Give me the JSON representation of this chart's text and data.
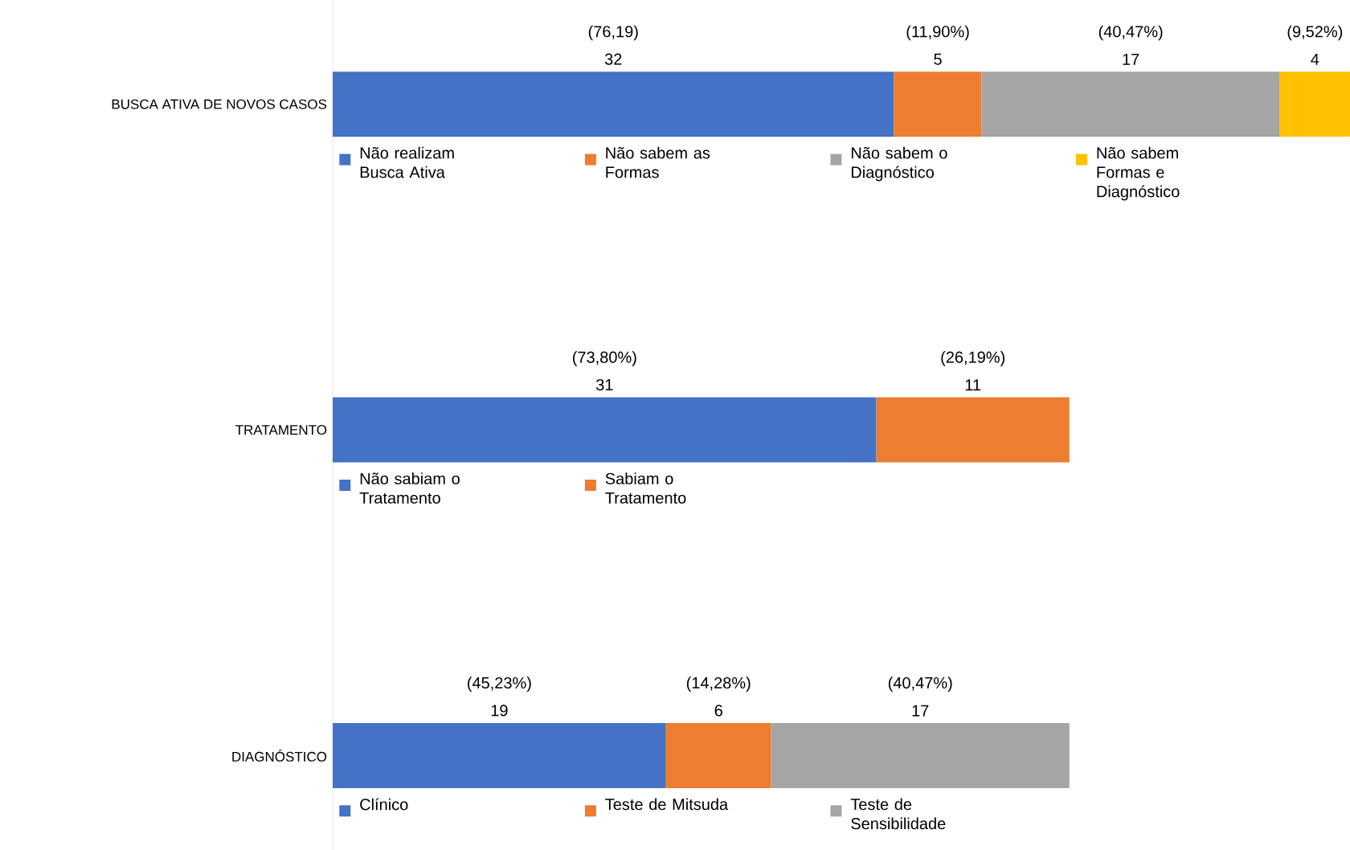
{
  "chart_data": {
    "type": "bar",
    "orientation": "horizontal",
    "stacked": true,
    "data_labels": true,
    "legend": "bottom",
    "tick_labels": "y",
    "categories": [
      "BUSCA ATIVA DE NOVOS CASOS",
      "TRATAMENTO",
      "DIAGNÓSTICO"
    ],
    "series": [
      {
        "name": "Não realizam Busca Ativa",
        "color": "#4472c4",
        "values": [
          32,
          null,
          null
        ]
      },
      {
        "name": "Não sabem as Formas",
        "color": "#ed7d31",
        "values": [
          5,
          null,
          null
        ]
      },
      {
        "name": "Não sabem o Diagnóstico",
        "color": "#a5a5a5",
        "values": [
          17,
          null,
          null
        ]
      },
      {
        "name": "Não sabem Formas e Diagnóstico",
        "color": "#ffc000",
        "values": [
          4,
          null,
          null
        ]
      },
      {
        "name": "Não sabiam o Tratamento",
        "color": "#4472c4",
        "values": [
          null,
          31,
          null
        ]
      },
      {
        "name": "Sabiam o Tratamento",
        "color": "#ed7d31",
        "values": [
          null,
          11,
          null
        ]
      },
      {
        "name": "Clínico",
        "color": "#4472c4",
        "values": [
          null,
          null,
          19
        ]
      },
      {
        "name": "Teste de Mitsuda",
        "color": "#ed7d31",
        "values": [
          null,
          null,
          6
        ]
      },
      {
        "name": "Teste de Sensibilidade",
        "color": "#a5a5a5",
        "values": [
          null,
          null,
          17
        ]
      }
    ],
    "annotations": [
      "(76,19)",
      "(11,90%)",
      "(40,47%)",
      "(9,52%)",
      "(73,80%)",
      "(26,19%)",
      "(45,23%)",
      "(14,28%)",
      "(40,47%)"
    ]
  }
}
